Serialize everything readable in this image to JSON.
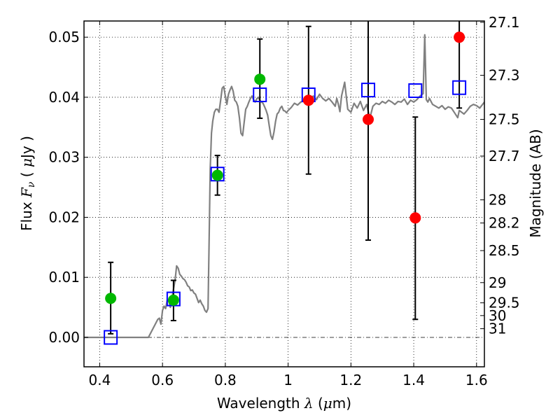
{
  "chart_data": {
    "type": "scatter",
    "title": "",
    "xlabel": "Wavelength  λ (μm)",
    "xlabel_parts": [
      "Wavelength  ",
      "λ",
      " (",
      "μ",
      "m)"
    ],
    "ylabel": "Flux  Fν ( μJy )",
    "ylabel_parts": [
      "Flux  ",
      "F",
      "ν",
      "  ( ",
      "μ",
      "Jy )"
    ],
    "y2label": "Magnitude (AB)",
    "xlim": [
      0.35,
      1.625
    ],
    "ylim": [
      -0.0049,
      0.0527
    ],
    "grid": true,
    "xticks": [
      0.4,
      0.6,
      0.8,
      1.0,
      1.2,
      1.4,
      1.6
    ],
    "xtick_labels": [
      "0.4",
      "0.6",
      "0.8",
      "1",
      "1.2",
      "1.4",
      "1.6"
    ],
    "yticks": [
      0.0,
      0.01,
      0.02,
      0.03,
      0.04,
      0.05
    ],
    "ytick_labels": [
      "0.00",
      "0.01",
      "0.02",
      "0.03",
      "0.04",
      "0.05"
    ],
    "y2_ticks_mag": [
      27.1,
      27.3,
      27.5,
      27.7,
      28,
      28.2,
      28.5,
      29,
      29.5,
      30,
      31
    ],
    "y2_tick_labels": [
      "27.1",
      "27.3",
      "27.5",
      "27.7",
      "28",
      "28.2",
      "28.5",
      "29",
      "29.5",
      "30",
      "31"
    ],
    "y2_zero_point": 23.9,
    "colors": {
      "spectrum": "#808080",
      "detection": "#00b800",
      "upper_limit": "#ff0000",
      "model": "#0000ff",
      "errorbar": "#000000"
    },
    "series": [
      {
        "name": "model-spectrum",
        "kind": "line",
        "x": [
          0.35,
          0.555,
          0.57,
          0.585,
          0.59,
          0.595,
          0.6,
          0.605,
          0.61,
          0.615,
          0.62,
          0.625,
          0.63,
          0.64,
          0.645,
          0.65,
          0.655,
          0.66,
          0.665,
          0.67,
          0.675,
          0.68,
          0.685,
          0.69,
          0.695,
          0.7,
          0.705,
          0.71,
          0.715,
          0.72,
          0.725,
          0.73,
          0.735,
          0.74,
          0.745,
          0.748,
          0.752,
          0.756,
          0.76,
          0.765,
          0.77,
          0.775,
          0.78,
          0.785,
          0.79,
          0.795,
          0.8,
          0.805,
          0.81,
          0.815,
          0.82,
          0.825,
          0.83,
          0.835,
          0.84,
          0.845,
          0.85,
          0.855,
          0.86,
          0.865,
          0.87,
          0.875,
          0.88,
          0.885,
          0.89,
          0.895,
          0.9,
          0.905,
          0.91,
          0.915,
          0.92,
          0.925,
          0.93,
          0.935,
          0.94,
          0.945,
          0.95,
          0.955,
          0.96,
          0.965,
          0.97,
          0.975,
          0.98,
          0.985,
          0.99,
          0.995,
          1.0,
          1.01,
          1.02,
          1.03,
          1.04,
          1.05,
          1.06,
          1.07,
          1.08,
          1.09,
          1.1,
          1.11,
          1.12,
          1.13,
          1.14,
          1.15,
          1.155,
          1.16,
          1.165,
          1.17,
          1.18,
          1.19,
          1.2,
          1.21,
          1.22,
          1.23,
          1.24,
          1.25,
          1.26,
          1.27,
          1.28,
          1.29,
          1.3,
          1.31,
          1.32,
          1.33,
          1.34,
          1.35,
          1.36,
          1.37,
          1.38,
          1.39,
          1.4,
          1.41,
          1.42,
          1.43,
          1.435,
          1.44,
          1.445,
          1.45,
          1.46,
          1.47,
          1.48,
          1.49,
          1.5,
          1.51,
          1.52,
          1.53,
          1.54,
          1.545,
          1.55,
          1.56,
          1.57,
          1.58,
          1.59,
          1.6,
          1.61,
          1.625
        ],
        "y": [
          0.0,
          0.0,
          0.0015,
          0.003,
          0.0032,
          0.0022,
          0.0045,
          0.0052,
          0.0048,
          0.0062,
          0.006,
          0.005,
          0.0065,
          0.0095,
          0.0119,
          0.0115,
          0.0105,
          0.0102,
          0.0098,
          0.0096,
          0.0092,
          0.0086,
          0.0084,
          0.0078,
          0.0079,
          0.0074,
          0.0072,
          0.0065,
          0.0058,
          0.0062,
          0.0056,
          0.0052,
          0.0045,
          0.0042,
          0.0048,
          0.015,
          0.028,
          0.034,
          0.036,
          0.0375,
          0.038,
          0.038,
          0.0375,
          0.0395,
          0.0415,
          0.0418,
          0.0402,
          0.0388,
          0.0405,
          0.0412,
          0.0418,
          0.041,
          0.0395,
          0.0392,
          0.0385,
          0.0365,
          0.034,
          0.0336,
          0.0358,
          0.038,
          0.0385,
          0.0392,
          0.0398,
          0.0402,
          0.0396,
          0.0392,
          0.0397,
          0.04,
          0.0395,
          0.0392,
          0.039,
          0.0384,
          0.0378,
          0.037,
          0.0352,
          0.0336,
          0.033,
          0.0342,
          0.036,
          0.0372,
          0.0375,
          0.0382,
          0.0385,
          0.0378,
          0.0377,
          0.0374,
          0.0378,
          0.0383,
          0.039,
          0.0387,
          0.0392,
          0.0394,
          0.0393,
          0.0397,
          0.0402,
          0.0396,
          0.0405,
          0.0398,
          0.0394,
          0.0398,
          0.0392,
          0.0385,
          0.0398,
          0.0388,
          0.0376,
          0.0402,
          0.0425,
          0.038,
          0.0375,
          0.039,
          0.0382,
          0.0393,
          0.0378,
          0.0388,
          0.0365,
          0.0385,
          0.039,
          0.0388,
          0.0393,
          0.039,
          0.0395,
          0.0392,
          0.0388,
          0.0393,
          0.0392,
          0.0397,
          0.0388,
          0.0395,
          0.0392,
          0.0396,
          0.0402,
          0.0406,
          0.0504,
          0.0396,
          0.0392,
          0.0398,
          0.0388,
          0.0385,
          0.0382,
          0.0386,
          0.038,
          0.0384,
          0.0382,
          0.0374,
          0.0366,
          0.0378,
          0.0376,
          0.0372,
          0.0378,
          0.0385,
          0.0388,
          0.0386,
          0.0382,
          0.0392
        ],
        "color": "#808080"
      },
      {
        "name": "model-photometry",
        "kind": "square-markers",
        "x": [
          0.435,
          0.635,
          0.775,
          0.91,
          1.065,
          1.255,
          1.405,
          1.545
        ],
        "y": [
          0.0,
          0.0064,
          0.0272,
          0.0404,
          0.0404,
          0.0412,
          0.0411,
          0.0416
        ],
        "color": "#0000ff"
      },
      {
        "name": "observed-photometry",
        "kind": "circle-markers-with-errorbars",
        "x": [
          0.435,
          0.635,
          0.775,
          0.91,
          1.065,
          1.255,
          1.405,
          1.545
        ],
        "y": [
          0.0065,
          0.0062,
          0.027,
          0.043,
          0.0395,
          0.0363,
          0.0199,
          0.05
        ],
        "yerr_low": [
          0.0006,
          0.0028,
          0.0237,
          0.0365,
          0.0272,
          0.0162,
          0.003,
          0.0382
        ],
        "yerr_high": [
          0.0125,
          0.0095,
          0.0303,
          0.0497,
          0.0518,
          0.062,
          0.0367,
          0.062
        ],
        "marker_colors": [
          "#00b800",
          "#00b800",
          "#00b800",
          "#00b800",
          "#ff0000",
          "#ff0000",
          "#ff0000",
          "#ff0000"
        ]
      }
    ]
  }
}
